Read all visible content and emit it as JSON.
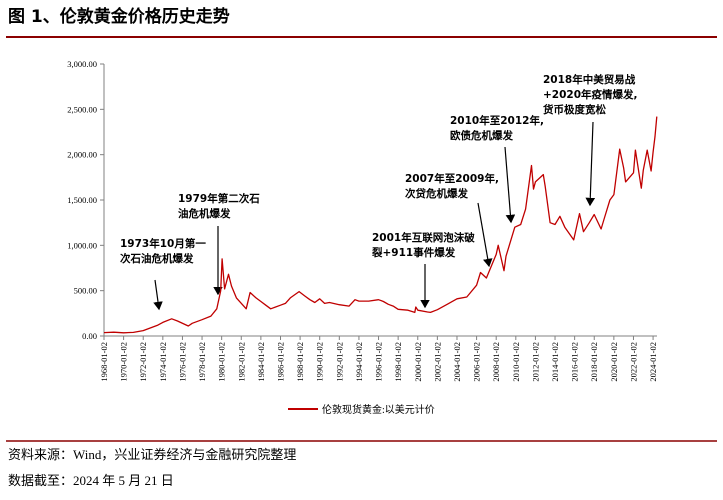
{
  "chart_data": {
    "type": "line",
    "title": "图 1、伦敦黄金价格历史走势",
    "xlim": [
      1968,
      2024.4
    ],
    "ylim": [
      0,
      3000
    ],
    "yticks": [
      {
        "value": 0,
        "label": "0.00"
      },
      {
        "value": 500,
        "label": "500.00"
      },
      {
        "value": 1000,
        "label": "1,000.00"
      },
      {
        "value": 1500,
        "label": "1,500.00"
      },
      {
        "value": 2000,
        "label": "2,000.00"
      },
      {
        "value": 2500,
        "label": "2,500.00"
      },
      {
        "value": 3000,
        "label": "3,000.00"
      }
    ],
    "xticks": [
      {
        "value": 1968,
        "label": "1968-01-02"
      },
      {
        "value": 1970,
        "label": "1970-01-02"
      },
      {
        "value": 1972,
        "label": "1972-01-02"
      },
      {
        "value": 1974,
        "label": "1974-01-02"
      },
      {
        "value": 1976,
        "label": "1976-01-02"
      },
      {
        "value": 1978,
        "label": "1978-01-02"
      },
      {
        "value": 1980,
        "label": "1980-01-02"
      },
      {
        "value": 1982,
        "label": "1982-01-02"
      },
      {
        "value": 1984,
        "label": "1984-01-02"
      },
      {
        "value": 1986,
        "label": "1986-01-02"
      },
      {
        "value": 1988,
        "label": "1988-01-02"
      },
      {
        "value": 1990,
        "label": "1990-01-02"
      },
      {
        "value": 1992,
        "label": "1992-01-02"
      },
      {
        "value": 1994,
        "label": "1994-01-02"
      },
      {
        "value": 1996,
        "label": "1996-01-02"
      },
      {
        "value": 1998,
        "label": "1998-01-02"
      },
      {
        "value": 2000,
        "label": "2000-01-02"
      },
      {
        "value": 2002,
        "label": "2002-01-02"
      },
      {
        "value": 2004,
        "label": "2004-01-02"
      },
      {
        "value": 2006,
        "label": "2006-01-02"
      },
      {
        "value": 2008,
        "label": "2008-01-02"
      },
      {
        "value": 2010,
        "label": "2010-01-02"
      },
      {
        "value": 2012,
        "label": "2012-01-02"
      },
      {
        "value": 2014,
        "label": "2014-01-02"
      },
      {
        "value": 2016,
        "label": "2016-01-02"
      },
      {
        "value": 2018,
        "label": "2018-01-02"
      },
      {
        "value": 2020,
        "label": "2020-01-02"
      },
      {
        "value": 2022,
        "label": "2022-01-02"
      },
      {
        "value": 2024,
        "label": "2024-01-02"
      }
    ],
    "series": [
      {
        "name": "伦敦现货黄金:以美元计价",
        "color": "#c00000",
        "x": [
          1968,
          1969,
          1970,
          1971,
          1972,
          1973.5,
          1974,
          1974.9,
          1975.5,
          1976.6,
          1977,
          1978,
          1978.9,
          1979.5,
          1979.9,
          1980.05,
          1980.3,
          1980.7,
          1981,
          1981.5,
          1982.5,
          1982.9,
          1983.5,
          1984,
          1984.5,
          1985,
          1985.5,
          1986,
          1986.5,
          1987,
          1987.9,
          1988.5,
          1989,
          1989.5,
          1990,
          1990.5,
          1991,
          1992,
          1993,
          1993.6,
          1994,
          1995,
          1996,
          1996.5,
          1997,
          1997.5,
          1998,
          1999,
          1999.7,
          1999.8,
          2000,
          2001,
          2001.3,
          2002,
          2003,
          2004,
          2005,
          2006,
          2006.4,
          2007,
          2008,
          2008.2,
          2008.8,
          2009,
          2009.9,
          2010.5,
          2011,
          2011.6,
          2011.8,
          2012,
          2012.8,
          2013,
          2013.5,
          2014,
          2014.5,
          2015,
          2015.9,
          2016.5,
          2016.9,
          2017.5,
          2018,
          2018.7,
          2019,
          2019.6,
          2020,
          2020.6,
          2021,
          2021.2,
          2022,
          2022.2,
          2022.8,
          2023,
          2023.4,
          2023.8,
          2024,
          2024.2,
          2024.38
        ],
        "values": [
          38,
          42,
          35,
          40,
          60,
          120,
          150,
          190,
          165,
          110,
          140,
          180,
          220,
          300,
          500,
          850,
          520,
          680,
          550,
          420,
          300,
          480,
          420,
          380,
          340,
          300,
          320,
          340,
          360,
          420,
          490,
          440,
          400,
          370,
          410,
          360,
          370,
          345,
          330,
          400,
          385,
          385,
          400,
          380,
          350,
          330,
          295,
          285,
          260,
          320,
          285,
          265,
          260,
          290,
          350,
          410,
          430,
          560,
          700,
          640,
          900,
          1000,
          720,
          880,
          1200,
          1230,
          1400,
          1880,
          1620,
          1700,
          1780,
          1650,
          1250,
          1230,
          1320,
          1200,
          1060,
          1350,
          1150,
          1250,
          1340,
          1180,
          1290,
          1500,
          1560,
          2060,
          1850,
          1700,
          1800,
          2050,
          1630,
          1830,
          2050,
          1820,
          2030,
          2200,
          2420
        ]
      }
    ],
    "annotations": [
      {
        "lines": [
          "1973年10月第一",
          "次石油危机爆发"
        ]
      },
      {
        "lines": [
          "1979年第二次石",
          "油危机爆发"
        ]
      },
      {
        "lines": [
          "2001年互联网泡沫破",
          "裂+911事件爆发"
        ]
      },
      {
        "lines": [
          "2007年至2009年,",
          "次贷危机爆发"
        ]
      },
      {
        "lines": [
          "2010年至2012年,",
          "欧债危机爆发"
        ]
      },
      {
        "lines": [
          "2018年中美贸易战",
          "+2020年疫情爆发,",
          "货币极度宽松"
        ]
      }
    ],
    "source": "资料来源：Wind，兴业证券经济与金融研究院整理",
    "date_note": "数据截至：2024 年 5 月 21 日"
  }
}
